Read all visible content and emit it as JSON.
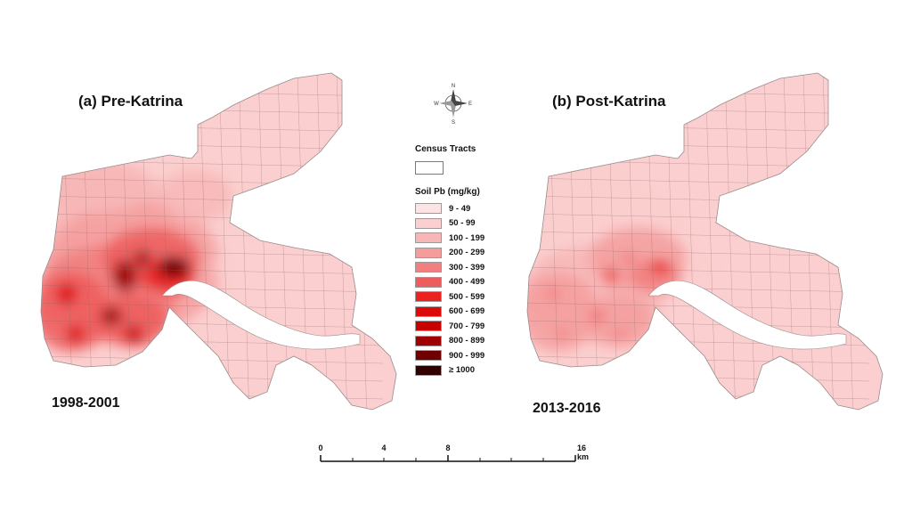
{
  "panels": [
    {
      "title": "(a) Pre-Katrina",
      "period": "1998-2001",
      "hotspot_intensity": 1.0
    },
    {
      "title": "(b) Post-Katrina",
      "period": "2013-2016",
      "hotspot_intensity": 0.45
    }
  ],
  "north_arrow": {
    "letters": {
      "n": "N",
      "s": "S",
      "e": "E",
      "w": "W"
    },
    "icon": "compass-rose-icon"
  },
  "legend": {
    "census_title": "Census Tracts",
    "soil_title": "Soil Pb (mg/kg)",
    "classes": [
      {
        "label": "9 - 49",
        "color": "#fde3e3"
      },
      {
        "label": "50 - 99",
        "color": "#fbcfcf"
      },
      {
        "label": "100 - 199",
        "color": "#f8b7b7"
      },
      {
        "label": "200 - 299",
        "color": "#f59d9d"
      },
      {
        "label": "300 - 399",
        "color": "#f27f7f"
      },
      {
        "label": "400 - 499",
        "color": "#ee5d5d"
      },
      {
        "label": "500 - 599",
        "color": "#ea2222"
      },
      {
        "label": "600 - 699",
        "color": "#dd0a0a"
      },
      {
        "label": "700 - 799",
        "color": "#c80000"
      },
      {
        "label": "800 - 899",
        "color": "#a00000"
      },
      {
        "label": "900 - 999",
        "color": "#700000"
      },
      {
        "label": "≥ 1000",
        "color": "#300000"
      }
    ]
  },
  "scale_bar": {
    "ticks": [
      "0",
      "4",
      "8",
      "16 km"
    ]
  }
}
